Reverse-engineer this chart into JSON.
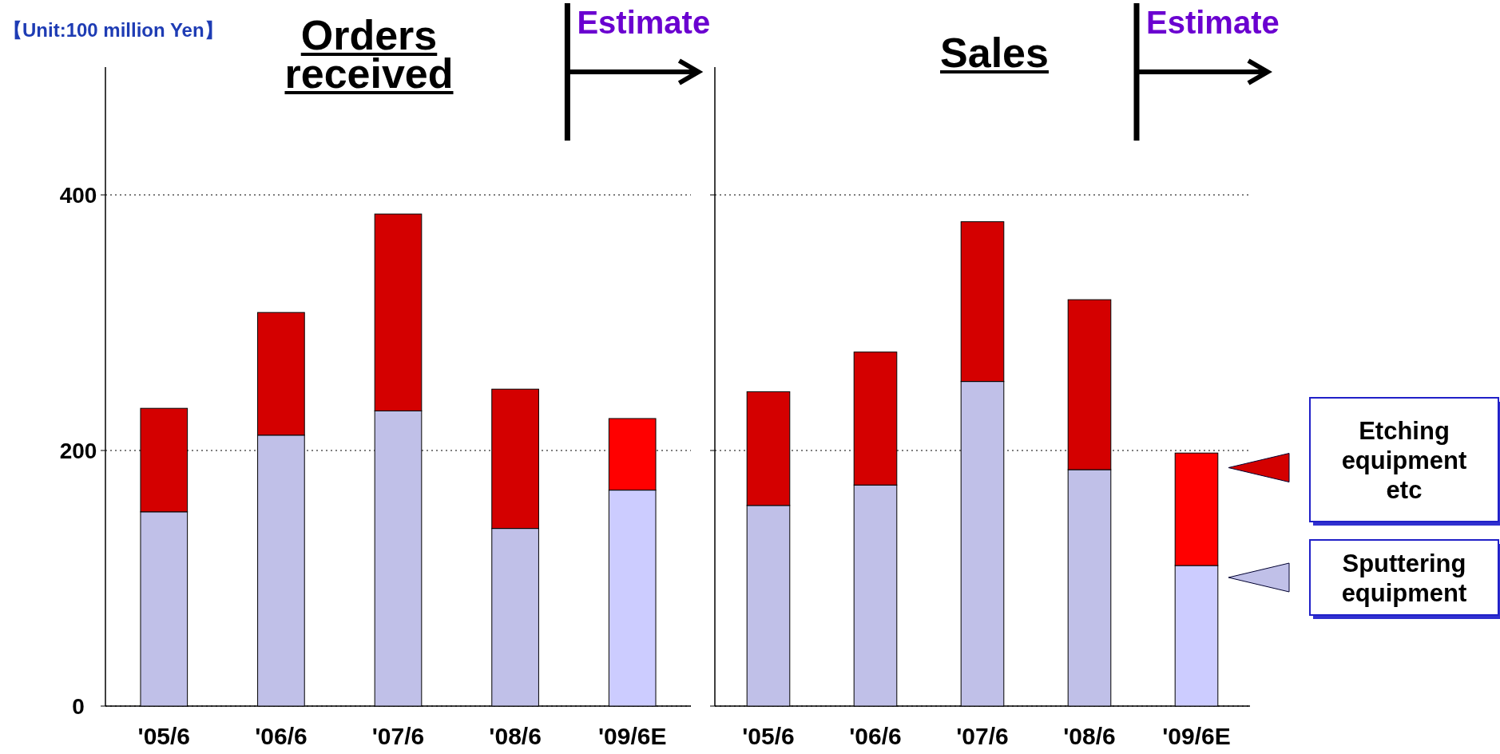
{
  "chart_data": [
    {
      "type": "bar",
      "stacked": true,
      "title": "Orders received",
      "categories": [
        "'05/6",
        "'06/6",
        "'07/6",
        "'08/6",
        "'09/6E"
      ],
      "series": [
        {
          "colors": [
            "#c0c0e8",
            "#c0c0e8",
            "#c0c0e8",
            "#c0c0e8",
            "#ccccff"
          ],
          "values": [
            152,
            212,
            231,
            139,
            169
          ]
        },
        {
          "colors": [
            "#d40000",
            "#d40000",
            "#d40000",
            "#d40000",
            "#ff0000"
          ],
          "values": [
            81,
            96,
            154,
            109,
            56
          ]
        }
      ],
      "ylim": [
        0,
        500
      ],
      "yticks": [
        0,
        200,
        400
      ],
      "grid": "y",
      "annotations": [
        "【Unit:100 million Yen】",
        "Estimate"
      ]
    },
    {
      "type": "bar",
      "stacked": true,
      "title": "Sales",
      "categories": [
        "'05/6",
        "'06/6",
        "'07/6",
        "'08/6",
        "'09/6E"
      ],
      "series": [
        {
          "name": "Sputtering equipment",
          "color": "#c0c0e8",
          "colors": [
            "#c0c0e8",
            "#c0c0e8",
            "#c0c0e8",
            "#c0c0e8",
            "#ccccff"
          ],
          "values": [
            157,
            173,
            254,
            185,
            110
          ]
        },
        {
          "name": "Etching equipment etc",
          "color": "#d40000",
          "colors": [
            "#d40000",
            "#d40000",
            "#d40000",
            "#d40000",
            "#ff0000"
          ],
          "values": [
            89,
            104,
            125,
            133,
            88
          ]
        }
      ],
      "ylim": [
        0,
        500
      ],
      "yticks": [
        0,
        200,
        400
      ],
      "grid": "y",
      "tick_labels": "x",
      "legend": "right",
      "annotations": [
        "Estimate"
      ]
    }
  ]
}
